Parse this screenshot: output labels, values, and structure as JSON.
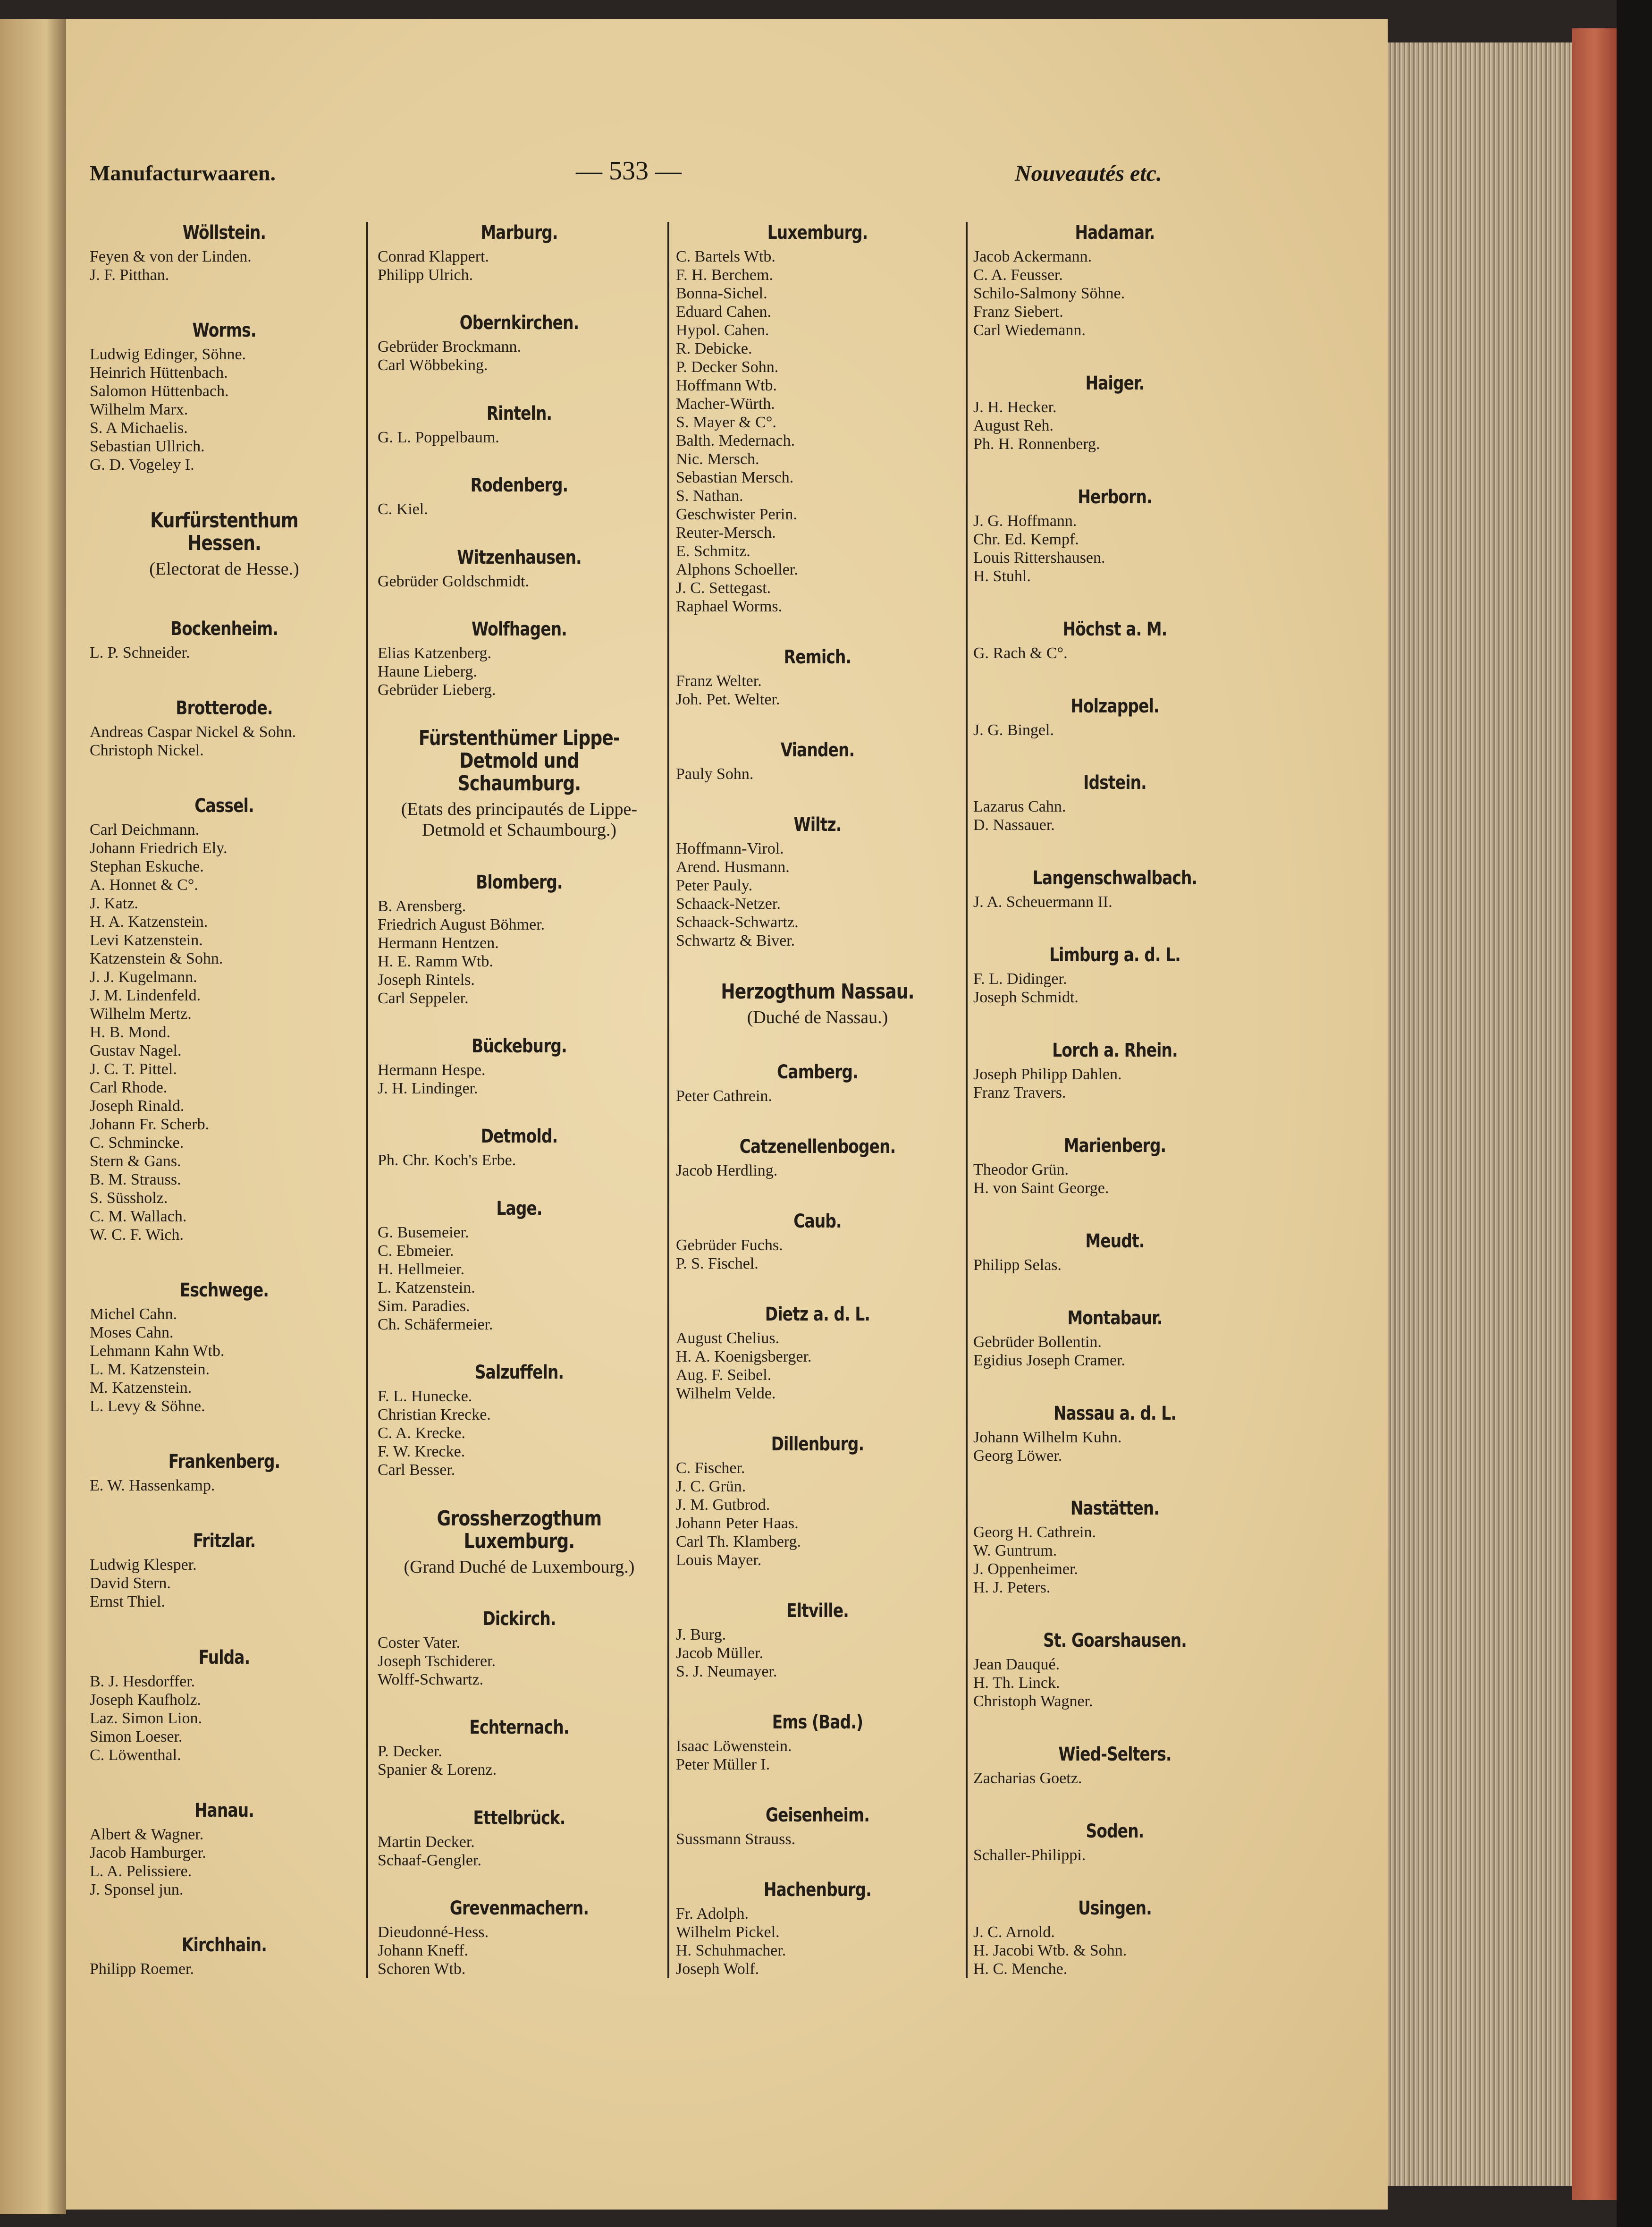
{
  "header": {
    "left": "Manufacturwaaren.",
    "center": "— 533 —",
    "right": "Nouveautés etc."
  },
  "columns": [
    {
      "sections": [
        {
          "heading": "Wöllstein.",
          "entries": [
            "Feyen & von der Linden.",
            "J. F. Pitthan."
          ]
        },
        {
          "heading": "Worms.",
          "entries": [
            "Ludwig Edinger, Söhne.",
            "Heinrich Hüttenbach.",
            "Salomon Hüttenbach.",
            "Wilhelm Marx.",
            "S. A Michaelis.",
            "Sebastian Ullrich.",
            "G. D. Vogeley I."
          ]
        },
        {
          "heading": "Kurfürstenthum Hessen.",
          "subheading": "(Electorat de Hesse.)",
          "entries": []
        },
        {
          "heading": "Bockenheim.",
          "entries": [
            "L. P. Schneider."
          ]
        },
        {
          "heading": "Brotterode.",
          "entries": [
            "Andreas Caspar Nickel & Sohn.",
            "Christoph Nickel."
          ]
        },
        {
          "heading": "Cassel.",
          "entries": [
            "Carl Deichmann.",
            "Johann Friedrich Ely.",
            "Stephan Eskuche.",
            "A. Honnet & C°.",
            "J. Katz.",
            "H. A. Katzenstein.",
            "Levi Katzenstein.",
            "Katzenstein & Sohn.",
            "J. J. Kugelmann.",
            "J. M. Lindenfeld.",
            "Wilhelm Mertz.",
            "H. B. Mond.",
            "Gustav Nagel.",
            "J. C. T. Pittel.",
            "Carl Rhode.",
            "Joseph Rinald.",
            "Johann Fr. Scherb.",
            "C. Schmincke.",
            "Stern & Gans.",
            "B. M. Strauss.",
            "S. Süssholz.",
            "C. M. Wallach.",
            "W. C. F. Wich."
          ]
        },
        {
          "heading": "Eschwege.",
          "entries": [
            "Michel Cahn.",
            "Moses Cahn.",
            "Lehmann Kahn Wtb.",
            "L. M. Katzenstein.",
            "M. Katzenstein.",
            "L. Levy & Söhne."
          ]
        },
        {
          "heading": "Frankenberg.",
          "entries": [
            "E. W. Hassenkamp."
          ]
        },
        {
          "heading": "Fritzlar.",
          "entries": [
            "Ludwig Klesper.",
            "David Stern.",
            "Ernst Thiel."
          ]
        },
        {
          "heading": "Fulda.",
          "entries": [
            "B. J. Hesdorffer.",
            "Joseph Kaufholz.",
            "Laz. Simon Lion.",
            "Simon Loeser.",
            "C. Löwenthal."
          ]
        },
        {
          "heading": "Hanau.",
          "entries": [
            "Albert & Wagner.",
            "Jacob Hamburger.",
            "L. A. Pelissiere.",
            "J. Sponsel jun."
          ]
        },
        {
          "heading": "Kirchhain.",
          "entries": [
            "Philipp Roemer."
          ]
        }
      ]
    },
    {
      "sections": [
        {
          "heading": "Marburg.",
          "entries": [
            "Conrad Klappert.",
            "Philipp Ulrich."
          ]
        },
        {
          "heading": "Obernkirchen.",
          "entries": [
            "Gebrüder Brockmann.",
            "Carl Wöbbeking."
          ]
        },
        {
          "heading": "Rinteln.",
          "entries": [
            "G. L. Poppelbaum."
          ]
        },
        {
          "heading": "Rodenberg.",
          "entries": [
            "C. Kiel."
          ]
        },
        {
          "heading": "Witzenhausen.",
          "entries": [
            "Gebrüder Goldschmidt."
          ]
        },
        {
          "heading": "Wolfhagen.",
          "entries": [
            "Elias Katzenberg.",
            "Haune Lieberg.",
            "Gebrüder Lieberg."
          ]
        },
        {
          "heading": "Fürstenthümer Lippe-Detmold und Schaumburg.",
          "subheading": "(Etats des principautés de Lippe-Detmold et Schaumbourg.)",
          "entries": []
        },
        {
          "heading": "Blomberg.",
          "entries": [
            "B. Arensberg.",
            "Friedrich August Böhmer.",
            "Hermann Hentzen.",
            "H. E. Ramm Wtb.",
            "Joseph Rintels.",
            "Carl Seppeler."
          ]
        },
        {
          "heading": "Bückeburg.",
          "entries": [
            "Hermann Hespe.",
            "J. H. Lindinger."
          ]
        },
        {
          "heading": "Detmold.",
          "entries": [
            "Ph. Chr. Koch's Erbe."
          ]
        },
        {
          "heading": "Lage.",
          "entries": [
            "G. Busemeier.",
            "C. Ebmeier.",
            "H. Hellmeier.",
            "L. Katzenstein.",
            "Sim. Paradies.",
            "Ch. Schäfermeier."
          ]
        },
        {
          "heading": "Salzuffeln.",
          "entries": [
            "F. L. Hunecke.",
            "Christian Krecke.",
            "C. A. Krecke.",
            "F. W. Krecke.",
            "Carl Besser."
          ]
        },
        {
          "heading": "Grossherzogthum Luxemburg.",
          "subheading": "(Grand Duché de Luxembourg.)",
          "entries": []
        },
        {
          "heading": "Dickirch.",
          "entries": [
            "Coster Vater.",
            "Joseph Tschiderer.",
            "Wolff-Schwartz."
          ]
        },
        {
          "heading": "Echternach.",
          "entries": [
            "P. Decker.",
            "Spanier & Lorenz."
          ]
        },
        {
          "heading": "Ettelbrück.",
          "entries": [
            "Martin Decker.",
            "Schaaf-Gengler."
          ]
        },
        {
          "heading": "Grevenmachern.",
          "entries": [
            "Dieudonné-Hess.",
            "Johann Kneff.",
            "Schoren Wtb."
          ]
        }
      ]
    },
    {
      "sections": [
        {
          "heading": "Luxemburg.",
          "entries": [
            "C. Bartels Wtb.",
            "F. H. Berchem.",
            "Bonna-Sichel.",
            "Eduard Cahen.",
            "Hypol. Cahen.",
            "R. Debicke.",
            "P. Decker Sohn.",
            "Hoffmann Wtb.",
            "Macher-Würth.",
            "S. Mayer & C°.",
            "Balth. Medernach.",
            "Nic. Mersch.",
            "Sebastian Mersch.",
            "S. Nathan.",
            "Geschwister Perin.",
            "Reuter-Mersch.",
            "E. Schmitz.",
            "Alphons Schoeller.",
            "J. C. Settegast.",
            "Raphael Worms."
          ]
        },
        {
          "heading": "Remich.",
          "entries": [
            "Franz Welter.",
            "Joh. Pet. Welter."
          ]
        },
        {
          "heading": "Vianden.",
          "entries": [
            "Pauly Sohn."
          ]
        },
        {
          "heading": "Wiltz.",
          "entries": [
            "Hoffmann-Virol.",
            "Arend. Husmann.",
            "Peter Pauly.",
            "Schaack-Netzer.",
            "Schaack-Schwartz.",
            "Schwartz & Biver."
          ]
        },
        {
          "heading": "Herzogthum Nassau.",
          "subheading": "(Duché de Nassau.)",
          "entries": []
        },
        {
          "heading": "Camberg.",
          "entries": [
            "Peter Cathrein."
          ]
        },
        {
          "heading": "Catzenellenbogen.",
          "entries": [
            "Jacob Herdling."
          ]
        },
        {
          "heading": "Caub.",
          "entries": [
            "Gebrüder Fuchs.",
            "P. S. Fischel."
          ]
        },
        {
          "heading": "Dietz a. d. L.",
          "entries": [
            "August Chelius.",
            "H. A. Koenigsberger.",
            "Aug. F. Seibel.",
            "Wilhelm Velde."
          ]
        },
        {
          "heading": "Dillenburg.",
          "entries": [
            "C. Fischer.",
            "J. C. Grün.",
            "J. M. Gutbrod.",
            "Johann Peter Haas.",
            "Carl Th. Klamberg.",
            "Louis Mayer."
          ]
        },
        {
          "heading": "Eltville.",
          "entries": [
            "J. Burg.",
            "Jacob Müller.",
            "S. J. Neumayer."
          ]
        },
        {
          "heading": "Ems (Bad.)",
          "entries": [
            "Isaac Löwenstein.",
            "Peter Müller I."
          ]
        },
        {
          "heading": "Geisenheim.",
          "entries": [
            "Sussmann Strauss."
          ]
        },
        {
          "heading": "Hachenburg.",
          "entries": [
            "Fr. Adolph.",
            "Wilhelm Pickel.",
            "H. Schuhmacher.",
            "Joseph Wolf."
          ]
        }
      ]
    },
    {
      "sections": [
        {
          "heading": "Hadamar.",
          "entries": [
            "Jacob Ackermann.",
            "C. A. Feusser.",
            "Schilo-Salmony Söhne.",
            "Franz Siebert.",
            "Carl Wiedemann."
          ]
        },
        {
          "heading": "Haiger.",
          "entries": [
            "J. H. Hecker.",
            "August Reh.",
            "Ph. H. Ronnenberg."
          ]
        },
        {
          "heading": "Herborn.",
          "entries": [
            "J. G. Hoffmann.",
            "Chr. Ed. Kempf.",
            "Louis Rittershausen.",
            "H. Stuhl."
          ]
        },
        {
          "heading": "Höchst a. M.",
          "entries": [
            "G. Rach & C°."
          ]
        },
        {
          "heading": "Holzappel.",
          "entries": [
            "J. G. Bingel."
          ]
        },
        {
          "heading": "Idstein.",
          "entries": [
            "Lazarus Cahn.",
            "D. Nassauer."
          ]
        },
        {
          "heading": "Langenschwalbach.",
          "entries": [
            "J. A. Scheuermann II."
          ]
        },
        {
          "heading": "Limburg a. d. L.",
          "entries": [
            "F. L. Didinger.",
            "Joseph Schmidt."
          ]
        },
        {
          "heading": "Lorch a. Rhein.",
          "entries": [
            "Joseph Philipp Dahlen.",
            "Franz Travers."
          ]
        },
        {
          "heading": "Marienberg.",
          "entries": [
            "Theodor Grün.",
            "H. von Saint George."
          ]
        },
        {
          "heading": "Meudt.",
          "entries": [
            "Philipp Selas."
          ]
        },
        {
          "heading": "Montabaur.",
          "entries": [
            "Gebrüder Bollentin.",
            "Egidius Joseph Cramer."
          ]
        },
        {
          "heading": "Nassau a. d. L.",
          "entries": [
            "Johann Wilhelm Kuhn.",
            "Georg Löwer."
          ]
        },
        {
          "heading": "Nastätten.",
          "entries": [
            "Georg H. Cathrein.",
            "W. Guntrum.",
            "J. Oppenheimer.",
            "H. J. Peters."
          ]
        },
        {
          "heading": "St. Goarshausen.",
          "entries": [
            "Jean Dauqué.",
            "H. Th. Linck.",
            "Christoph Wagner."
          ]
        },
        {
          "heading": "Wied-Selters.",
          "entries": [
            "Zacharias Goetz."
          ]
        },
        {
          "heading": "Soden.",
          "entries": [
            "Schaller-Philippi."
          ]
        },
        {
          "heading": "Usingen.",
          "entries": [
            "J. C. Arnold.",
            "H. Jacobi Wtb. & Sohn.",
            "H. C. Menche."
          ]
        }
      ]
    }
  ]
}
